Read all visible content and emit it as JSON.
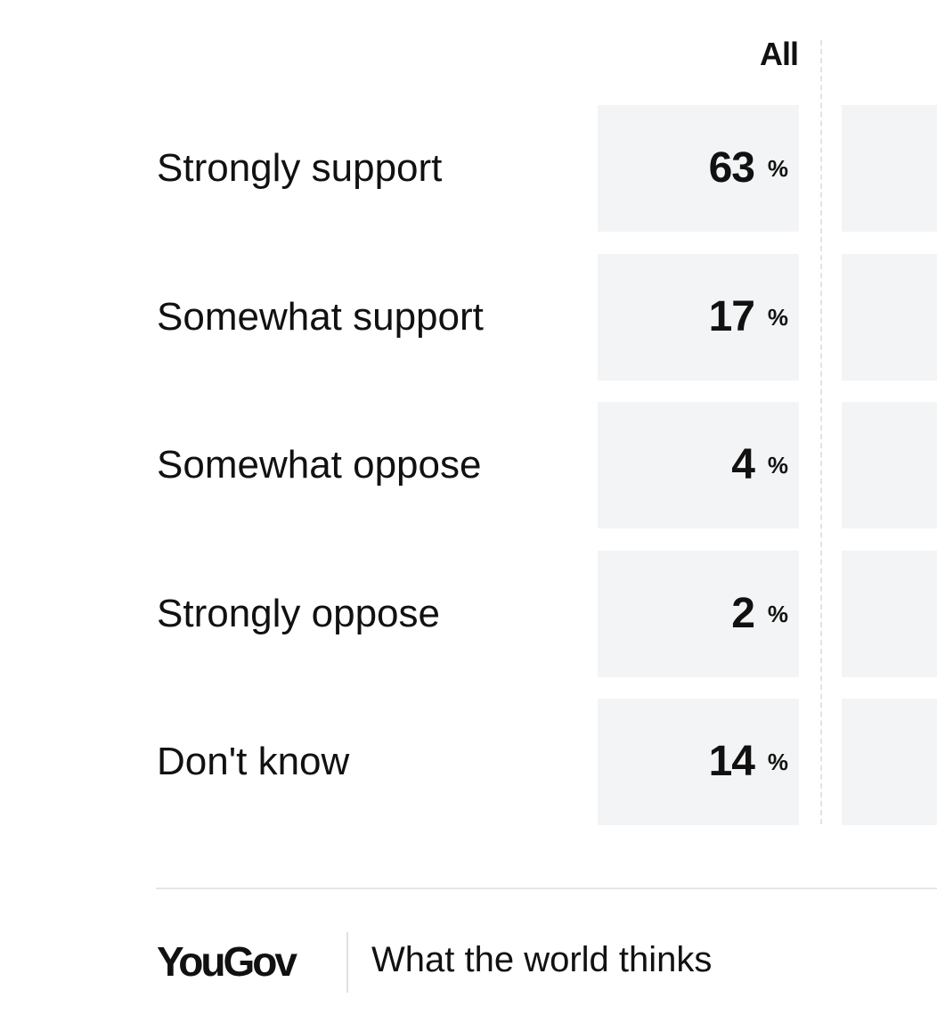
{
  "table": {
    "columns": [
      "All"
    ],
    "unit": "%",
    "rows": [
      {
        "label": "Strongly support",
        "values": [
          63
        ]
      },
      {
        "label": "Somewhat support",
        "values": [
          17
        ]
      },
      {
        "label": "Somewhat oppose",
        "values": [
          4
        ]
      },
      {
        "label": "Strongly oppose",
        "values": [
          2
        ]
      },
      {
        "label": "Don't know",
        "values": [
          14
        ]
      }
    ]
  },
  "footer": {
    "brand": "YouGov",
    "tagline": "What the world thinks"
  }
}
